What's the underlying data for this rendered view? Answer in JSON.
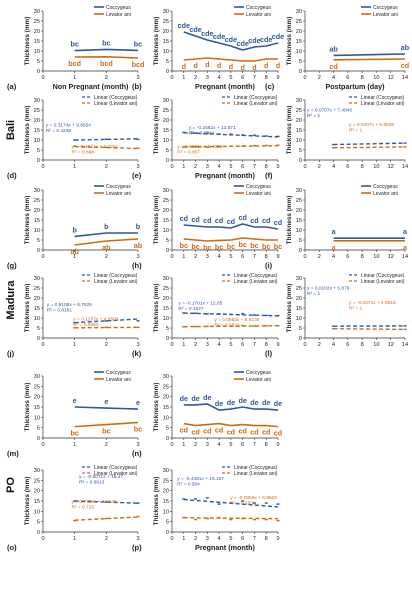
{
  "colors": {
    "coccygeus": "#2f57a0",
    "levator": "#cf6a14",
    "axis": "#333333"
  },
  "legend": {
    "coccygeus": "Coccygeus",
    "levator": "Levator ani",
    "linear_coccygeus": "Linear (Coccygeus)",
    "linear_levator": "Linear (Levator ani)"
  },
  "rows": [
    {
      "label": "Bali"
    },
    {
      "label": "Madura"
    },
    {
      "label": "PO"
    }
  ],
  "chart_data": [
    {
      "id": "a",
      "type": "line",
      "ylabel": "Thickness (mm)",
      "xlabel": "Non Pregnant (month)",
      "xlim": [
        0,
        3
      ],
      "xticks": [
        0,
        1,
        2,
        3
      ],
      "ylim": [
        0,
        30
      ],
      "yticks": [
        0,
        5,
        10,
        15,
        20,
        25,
        30
      ],
      "x": [
        1,
        2,
        3
      ],
      "series": [
        {
          "name": "Coccygeus",
          "values": [
            10.2,
            10.8,
            10.3
          ],
          "labels": [
            "bc",
            "bc",
            "bc"
          ]
        },
        {
          "name": "Levator ani",
          "values": [
            7.0,
            7.1,
            6.5
          ],
          "labels": [
            "bcd",
            "bcd",
            "bcd"
          ]
        }
      ]
    },
    {
      "id": "b",
      "type": "line",
      "ylabel": "Thickness (mm)",
      "xlabel": "Pregnant (month)",
      "xlim": [
        0,
        9
      ],
      "xticks": [
        0,
        1,
        2,
        3,
        4,
        5,
        6,
        7,
        8,
        9
      ],
      "ylim": [
        0,
        30
      ],
      "yticks": [
        0,
        5,
        10,
        15,
        20,
        25,
        30
      ],
      "x": [
        1,
        2,
        3,
        4,
        5,
        6,
        7,
        8,
        9
      ],
      "series": [
        {
          "name": "Coccygeus",
          "values": [
            19.5,
            17.5,
            15.5,
            14.0,
            12.5,
            10.5,
            12.0,
            12.5,
            14.0
          ],
          "labels": [
            "cde",
            "cde",
            "cde",
            "cde",
            "cde",
            "cde",
            "cde",
            "cde",
            "cde"
          ]
        },
        {
          "name": "Levator ani",
          "values": [
            5.5,
            6.0,
            6.5,
            6.0,
            5.5,
            5.0,
            5.0,
            6.0,
            6.0
          ],
          "labels": [
            "d",
            "d",
            "d",
            "d",
            "d",
            "d",
            "d",
            "d",
            "d"
          ]
        }
      ]
    },
    {
      "id": "c",
      "type": "line",
      "ylabel": "Thickness (mm)",
      "xlabel": "Postpartum (day)",
      "xlim": [
        0,
        14
      ],
      "xticks": [
        0,
        2,
        4,
        6,
        8,
        10,
        12,
        14
      ],
      "ylim": [
        0,
        30
      ],
      "yticks": [
        0,
        5,
        10,
        15,
        20,
        25,
        30
      ],
      "x": [
        4,
        14
      ],
      "series": [
        {
          "name": "Coccygeus",
          "values": [
            7.8,
            8.5
          ],
          "labels": [
            "ab",
            "ab"
          ]
        },
        {
          "name": "Levator ani",
          "values": [
            5.6,
            6.0
          ],
          "labels": [
            "cd",
            "cd"
          ]
        }
      ]
    },
    {
      "id": "d",
      "type": "scatter",
      "ylabel": "Thickness (mm)",
      "xlabel": "",
      "xlim": [
        0,
        3
      ],
      "xticks": [
        0,
        1,
        2,
        3
      ],
      "ylim": [
        0,
        30
      ],
      "yticks": [
        0,
        5,
        10,
        15,
        20,
        25,
        30
      ],
      "x": [
        1,
        2,
        3
      ],
      "series": [
        {
          "name": "Linear (Coccygeus)",
          "values": [
            10.0,
            10.4,
            10.3
          ],
          "trend": [
            9.97,
            10.29,
            10.61
          ],
          "equation": "y = 0.3174x + 9.6554",
          "r2": "R² = 0.4236"
        },
        {
          "name": "Linear (Levator ani)",
          "values": [
            7.0,
            6.3,
            5.9
          ],
          "trend": [
            6.73,
            6.24,
            5.74
          ],
          "equation": "y = -0.4941x + 7.2251",
          "r2": "R² = 0.898"
        }
      ]
    },
    {
      "id": "e",
      "type": "scatter",
      "ylabel": "Thickness (mm)",
      "xlabel": "Pregnant (month)",
      "xlim": [
        0,
        9
      ],
      "xticks": [
        0,
        1,
        2,
        3,
        4,
        5,
        6,
        7,
        8,
        9
      ],
      "ylim": [
        0,
        30
      ],
      "yticks": [
        0,
        5,
        10,
        15,
        20,
        25,
        30
      ],
      "x": [
        1,
        2,
        3,
        4,
        5,
        6,
        7,
        8,
        9
      ],
      "series": [
        {
          "name": "Linear (Coccygeus)",
          "values": [
            13.8,
            13.5,
            13.4,
            13.0,
            12.9,
            12.5,
            12.4,
            12.0,
            11.8
          ],
          "trend": [
            13.61,
            13.36,
            13.1,
            12.84,
            12.58,
            12.32,
            12.06,
            11.81,
            11.55
          ],
          "equation": "y = -0.2582x + 13.871",
          "r2": "R² = 0.0794"
        },
        {
          "name": "Linear (Levator ani)",
          "values": [
            6.5,
            6.6,
            6.4,
            6.7,
            6.9,
            7.0,
            7.2,
            7.3,
            7.4
          ],
          "trend": [
            6.56,
            6.63,
            6.7,
            6.77,
            6.84,
            6.91,
            6.98,
            7.06,
            7.13
          ],
          "equation": "y = 0.0671x + 6.4989",
          "r2": "R² = 0.057"
        }
      ]
    },
    {
      "id": "f",
      "type": "scatter",
      "ylabel": "Thickness (mm)",
      "xlabel": "",
      "xlim": [
        0,
        14
      ],
      "xticks": [
        0,
        2,
        4,
        6,
        8,
        10,
        12,
        14
      ],
      "ylim": [
        0,
        30
      ],
      "yticks": [
        0,
        5,
        10,
        15,
        20,
        25,
        30
      ],
      "x": [
        4,
        14
      ],
      "series": [
        {
          "name": "Linear (Coccygeus)",
          "values": [
            7.73,
            8.44
          ],
          "trend": [
            7.73,
            8.44
          ],
          "equation": "y = 0.0707x + 7.4846",
          "r2": "R² = 1"
        },
        {
          "name": "Linear (Levator ani)",
          "values": [
            6.13,
            6.54
          ],
          "trend": [
            6.13,
            6.54
          ],
          "equation": "y = 0.0407x + 5.9639",
          "r2": "R² = 1"
        }
      ]
    },
    {
      "id": "g",
      "type": "line",
      "ylabel": "Thickness (mm)",
      "xlabel": "",
      "xlim": [
        0,
        3
      ],
      "xticks": [
        0,
        1,
        2,
        3
      ],
      "ylim": [
        0,
        30
      ],
      "yticks": [
        0,
        5,
        10,
        15,
        20,
        25,
        30
      ],
      "x": [
        1,
        2,
        3
      ],
      "series": [
        {
          "name": "Coccygeus",
          "values": [
            6.8,
            8.5,
            8.5
          ],
          "labels": [
            "b",
            "b",
            "b"
          ]
        },
        {
          "name": "Levator ani",
          "values": [
            2.5,
            4.5,
            5.5
          ],
          "labels": [
            "ab",
            "ab",
            "ab"
          ]
        }
      ]
    },
    {
      "id": "h",
      "type": "line",
      "ylabel": "Thickness (mm)",
      "xlabel": "",
      "xlim": [
        0,
        9
      ],
      "xticks": [
        0,
        1,
        2,
        3,
        4,
        5,
        6,
        7,
        8,
        9
      ],
      "ylim": [
        0,
        30
      ],
      "yticks": [
        0,
        5,
        10,
        15,
        20,
        25,
        30
      ],
      "x": [
        1,
        2,
        3,
        4,
        5,
        6,
        7,
        8,
        9
      ],
      "series": [
        {
          "name": "Coccygeus",
          "values": [
            12.5,
            12.0,
            11.5,
            11.5,
            11.0,
            13.0,
            11.5,
            11.5,
            10.5
          ],
          "labels": [
            "cd",
            "cd",
            "cd",
            "cd",
            "cd",
            "cd",
            "cd",
            "cd",
            "cd"
          ]
        },
        {
          "name": "Levator ani",
          "values": [
            5.5,
            5.0,
            4.5,
            4.8,
            5.0,
            6.0,
            5.5,
            5.0,
            5.0
          ],
          "labels": [
            "bc",
            "bc",
            "bc",
            "bc",
            "bc",
            "bc",
            "bc",
            "bc",
            "bc"
          ]
        }
      ]
    },
    {
      "id": "i",
      "type": "line",
      "ylabel": "Thickness (mm)",
      "xlabel": "",
      "xlim": [
        0,
        14
      ],
      "xticks": [
        0,
        2,
        4,
        6,
        8,
        10,
        12,
        14
      ],
      "ylim": [
        0,
        30
      ],
      "yticks": [
        0,
        5,
        10,
        15,
        20,
        25,
        30
      ],
      "x": [
        4,
        14
      ],
      "series": [
        {
          "name": "Coccygeus",
          "values": [
            5.9,
            5.9
          ],
          "labels": [
            "a",
            "a"
          ]
        },
        {
          "name": "Levator ani",
          "values": [
            4.6,
            4.6
          ],
          "labels": [
            "a",
            "a"
          ]
        }
      ]
    },
    {
      "id": "j",
      "type": "scatter",
      "ylabel": "Thickness (mm)",
      "xlabel": "",
      "xlim": [
        0,
        3
      ],
      "xticks": [
        0,
        1,
        2,
        3
      ],
      "ylim": [
        0,
        30
      ],
      "yticks": [
        0,
        5,
        10,
        15,
        20,
        25,
        30
      ],
      "x": [
        1,
        2,
        3
      ],
      "series": [
        {
          "name": "Linear (Coccygeus)",
          "values": [
            7.6,
            8.5,
            8.6
          ],
          "trend": [
            7.68,
            8.59,
            9.5
          ],
          "equation": "y = 0.9108x + 6.7625",
          "r2": "R² = 0.8181"
        },
        {
          "name": "Linear (Levator ani)",
          "values": [
            5.1,
            5.3,
            5.3
          ],
          "trend": [
            5.08,
            5.21,
            5.33
          ],
          "equation": "y = 0.1257x + 4.9503",
          "r2": "R² = 0.9462"
        }
      ]
    },
    {
      "id": "k",
      "type": "scatter",
      "ylabel": "Thickness (mm)",
      "xlabel": "",
      "xlim": [
        0,
        9
      ],
      "xticks": [
        0,
        1,
        2,
        3,
        4,
        5,
        6,
        7,
        8,
        9
      ],
      "ylim": [
        0,
        30
      ],
      "yticks": [
        0,
        5,
        10,
        15,
        20,
        25,
        30
      ],
      "x": [
        1,
        2,
        3,
        4,
        5,
        6,
        7,
        8,
        9
      ],
      "series": [
        {
          "name": "Linear (Coccygeus)",
          "values": [
            12.5,
            12.4,
            12.0,
            12.1,
            11.8,
            12.2,
            11.5,
            11.3,
            11.2
          ],
          "trend": [
            12.47,
            12.29,
            12.12,
            11.94,
            11.76,
            11.58,
            11.4,
            11.22,
            11.05
          ],
          "equation": "y = -0.1781x + 12.65",
          "r2": "R² = 0.1627"
        },
        {
          "name": "Linear (Levator ani)",
          "values": [
            5.6,
            5.7,
            5.8,
            5.9,
            5.8,
            6.2,
            6.0,
            6.1,
            6.2
          ],
          "trend": [
            5.67,
            5.73,
            5.78,
            5.84,
            5.89,
            5.95,
            6.0,
            6.06,
            6.12
          ],
          "equation": "y = 0.0563x + 5.6138",
          "r2": "R² = 0.0531"
        }
      ]
    },
    {
      "id": "l",
      "type": "scatter",
      "ylabel": "Thickness (mm)",
      "xlabel": "",
      "xlim": [
        0,
        14
      ],
      "xticks": [
        0,
        2,
        4,
        6,
        8,
        10,
        12,
        14
      ],
      "ylim": [
        0,
        30
      ],
      "yticks": [
        0,
        5,
        10,
        15,
        20,
        25,
        30
      ],
      "x": [
        4,
        14
      ],
      "series": [
        {
          "name": "Linear (Coccygeus)",
          "values": [
            5.92,
            6.02
          ],
          "trend": [
            5.92,
            6.02
          ],
          "equation": "y = 0.0102x + 5.879",
          "r2": "R² = 1"
        },
        {
          "name": "Linear (Levator ani)",
          "values": [
            4.67,
            4.3
          ],
          "trend": [
            4.67,
            4.3
          ],
          "equation": "y = -0.0371x + 4.8819",
          "r2": "R² = 1"
        }
      ]
    },
    {
      "id": "m",
      "type": "line",
      "ylabel": "Thickness (mm)",
      "xlabel": "",
      "xlim": [
        0,
        3
      ],
      "xticks": [
        0,
        1,
        2,
        3
      ],
      "ylim": [
        0,
        30
      ],
      "yticks": [
        0,
        5,
        10,
        15,
        20,
        25,
        30
      ],
      "x": [
        1,
        2,
        3
      ],
      "series": [
        {
          "name": "Coccygeus",
          "values": [
            15.0,
            14.5,
            14.0
          ],
          "labels": [
            "e",
            "e",
            "e"
          ]
        },
        {
          "name": "Levator ani",
          "values": [
            5.5,
            6.5,
            7.5
          ],
          "labels": [
            "bc",
            "bc",
            "bc"
          ]
        }
      ]
    },
    {
      "id": "n",
      "type": "line",
      "ylabel": "Thickness (mm)",
      "xlabel": "",
      "xlim": [
        0,
        9
      ],
      "xticks": [
        0,
        1,
        2,
        3,
        4,
        5,
        6,
        7,
        8,
        9
      ],
      "ylim": [
        0,
        30
      ],
      "yticks": [
        0,
        5,
        10,
        15,
        20,
        25,
        30
      ],
      "x": [
        1,
        2,
        3,
        4,
        5,
        6,
        7,
        8,
        9
      ],
      "series": [
        {
          "name": "Coccygeus",
          "values": [
            16.0,
            16.0,
            16.5,
            13.5,
            14.0,
            15.0,
            14.0,
            14.0,
            13.5
          ],
          "labels": [
            "de",
            "de",
            "de",
            "de",
            "de",
            "de",
            "de",
            "de",
            "de"
          ]
        },
        {
          "name": "Levator ani",
          "values": [
            7.0,
            6.0,
            6.5,
            7.0,
            6.0,
            6.5,
            6.0,
            6.0,
            5.5
          ],
          "labels": [
            "cd",
            "cd",
            "cd",
            "cd",
            "cd",
            "cd",
            "cd",
            "cd",
            "cd"
          ]
        }
      ]
    },
    {
      "id": "o",
      "type": "scatter",
      "ylabel": "Thickness (mm)",
      "xlabel": "",
      "xlim": [
        0,
        3
      ],
      "xticks": [
        0,
        1,
        2,
        3
      ],
      "ylim": [
        0,
        30
      ],
      "yticks": [
        0,
        5,
        10,
        15,
        20,
        25,
        30
      ],
      "x": [
        1,
        2,
        3
      ],
      "series": [
        {
          "name": "Linear (Coccygeus)",
          "values": [
            15.0,
            14.5,
            14.0
          ],
          "trend": [
            14.96,
            14.46,
            13.95
          ],
          "equation": "y = -0.5071x + 15.47",
          "r2": "R² = 0.8913"
        },
        {
          "name": "Linear (Levator ani)",
          "values": [
            5.5,
            6.5,
            7.5
          ],
          "trend": [
            5.71,
            6.49,
            7.27
          ],
          "equation": "y = 0.7779x + 4.9535",
          "r2": "R² = 0.723"
        }
      ]
    },
    {
      "id": "p",
      "type": "scatter",
      "ylabel": "Thickness (mm)",
      "xlabel": "Pregnant (month)",
      "xlim": [
        0,
        9
      ],
      "xticks": [
        0,
        1,
        2,
        3,
        4,
        5,
        6,
        7,
        8,
        9
      ],
      "ylim": [
        0,
        30
      ],
      "yticks": [
        0,
        5,
        10,
        15,
        20,
        25,
        30
      ],
      "x": [
        1,
        2,
        3,
        4,
        5,
        6,
        7,
        8,
        9
      ],
      "series": [
        {
          "name": "Linear (Coccygeus)",
          "values": [
            16.0,
            16.0,
            16.5,
            13.5,
            14.0,
            15.0,
            14.0,
            14.0,
            13.5
          ],
          "trend": [
            15.71,
            15.26,
            14.82,
            14.37,
            13.93,
            13.48,
            13.03,
            12.59,
            12.14
          ],
          "equation": "y = -0.4451x + 16.157",
          "r2": "R² = 0.584"
        },
        {
          "name": "Linear (Levator ani)",
          "values": [
            7.0,
            6.0,
            6.5,
            7.0,
            6.0,
            6.5,
            6.0,
            6.0,
            5.5
          ],
          "trend": [
            6.9,
            6.84,
            6.79,
            6.73,
            6.67,
            6.61,
            6.56,
            6.5,
            6.44
          ],
          "equation": "y = -0.0859x + 6.9603",
          "r2": "R² = 0.1838"
        }
      ]
    }
  ]
}
